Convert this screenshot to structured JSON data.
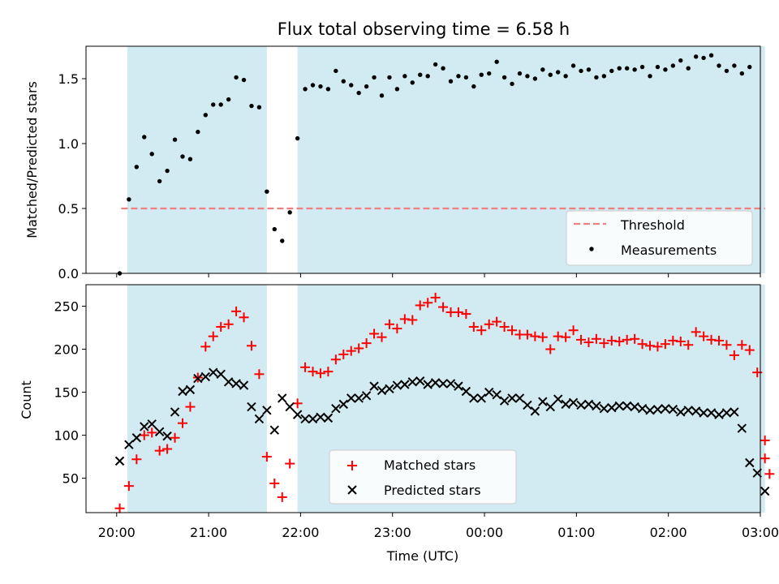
{
  "figure": {
    "title": "Flux total observing time = 6.58 h"
  },
  "colors": {
    "shade": "#add8e6",
    "threshold": "#f08080",
    "measurement": "#000000",
    "matched": "#ff0000",
    "predicted": "#000000"
  },
  "chart_data": [
    {
      "type": "scatter",
      "ylabel": "Matched/Predicted stars",
      "xlabel": "",
      "x_unit": "minutes from 20:00 UTC",
      "xlim": [
        -20,
        420
      ],
      "ylim": [
        0,
        1.75
      ],
      "yticks": [
        0.0,
        0.5,
        1.0,
        1.5
      ],
      "ytick_labels": [
        "0.0",
        "0.5",
        "1.0",
        "1.5"
      ],
      "shaded_spans": [
        [
          7,
          98
        ],
        [
          118,
          423
        ]
      ],
      "threshold": {
        "name": "Threshold",
        "y": 0.5,
        "x_range": [
          3,
          423
        ],
        "style": "dashed"
      },
      "series": [
        {
          "name": "Measurements",
          "marker": "dot",
          "x": [
            2,
            8,
            13,
            18,
            23,
            28,
            33,
            38,
            43,
            48,
            53,
            58,
            63,
            68,
            73,
            78,
            83,
            88,
            93,
            98,
            103,
            108,
            113,
            118,
            123,
            128,
            133,
            138,
            143,
            148,
            153,
            158,
            163,
            168,
            173,
            178,
            183,
            188,
            193,
            198,
            203,
            208,
            213,
            218,
            223,
            228,
            233,
            238,
            243,
            248,
            253,
            258,
            263,
            268,
            273,
            278,
            283,
            288,
            293,
            298,
            303,
            308,
            313,
            318,
            323,
            328,
            333,
            338,
            343,
            348,
            353,
            358,
            363,
            368,
            373,
            378,
            383,
            388,
            393,
            398,
            403,
            408,
            413
          ],
          "y": [
            0.0,
            0.57,
            0.82,
            1.05,
            0.92,
            0.71,
            0.79,
            1.03,
            0.9,
            0.88,
            1.09,
            1.22,
            1.3,
            1.3,
            1.34,
            1.51,
            1.49,
            1.29,
            1.28,
            0.63,
            0.34,
            0.25,
            0.47,
            1.04,
            1.42,
            1.45,
            1.44,
            1.42,
            1.56,
            1.48,
            1.45,
            1.39,
            1.44,
            1.51,
            1.37,
            1.51,
            1.42,
            1.52,
            1.47,
            1.53,
            1.52,
            1.61,
            1.58,
            1.48,
            1.52,
            1.51,
            1.44,
            1.53,
            1.54,
            1.63,
            1.51,
            1.46,
            1.54,
            1.52,
            1.5,
            1.57,
            1.53,
            1.55,
            1.52,
            1.6,
            1.56,
            1.57,
            1.51,
            1.52,
            1.56,
            1.58,
            1.58,
            1.57,
            1.59,
            1.52,
            1.59,
            1.57,
            1.6,
            1.64,
            1.58,
            1.67,
            1.66,
            1.68,
            1.6,
            1.56,
            1.6,
            1.54,
            1.59
          ]
        }
      ]
    },
    {
      "type": "scatter",
      "ylabel": "Count",
      "xlabel": "Time (UTC)",
      "x_unit": "minutes from 20:00 UTC",
      "xlim": [
        -20,
        420
      ],
      "ylim": [
        10,
        275
      ],
      "yticks": [
        50,
        100,
        150,
        200,
        250
      ],
      "ytick_labels": [
        "50",
        "100",
        "150",
        "200",
        "250"
      ],
      "xticks": [
        0,
        60,
        120,
        180,
        240,
        300,
        360,
        420
      ],
      "xtick_labels": [
        "20:00",
        "21:00",
        "22:00",
        "23:00",
        "00:00",
        "01:00",
        "02:00",
        "03:00"
      ],
      "shaded_spans": [
        [
          7,
          98
        ],
        [
          118,
          423
        ]
      ],
      "legend_position": "bottom-center",
      "series": [
        {
          "name": "Matched stars",
          "marker": "plus",
          "x": [
            2,
            8,
            13,
            18,
            23,
            28,
            33,
            38,
            43,
            48,
            53,
            58,
            63,
            68,
            73,
            78,
            83,
            88,
            93,
            98,
            103,
            108,
            113,
            118,
            123,
            128,
            133,
            138,
            143,
            148,
            153,
            158,
            163,
            168,
            173,
            178,
            183,
            188,
            193,
            198,
            203,
            208,
            213,
            218,
            223,
            228,
            233,
            238,
            243,
            248,
            253,
            258,
            263,
            268,
            273,
            278,
            283,
            288,
            293,
            298,
            303,
            308,
            313,
            318,
            323,
            328,
            333,
            338,
            343,
            348,
            353,
            358,
            363,
            368,
            373,
            378,
            383,
            388,
            393,
            398,
            403,
            408,
            413,
            418,
            423
          ],
          "y": [
            15,
            41,
            72,
            100,
            103,
            82,
            84,
            97,
            114,
            133,
            167,
            203,
            215,
            226,
            229,
            244,
            237,
            204,
            171,
            75,
            44,
            28,
            67,
            137,
            179,
            174,
            172,
            174,
            188,
            194,
            198,
            201,
            207,
            218,
            214,
            229,
            224,
            235,
            234,
            251,
            254,
            260,
            249,
            243,
            243,
            241,
            226,
            222,
            229,
            232,
            226,
            222,
            217,
            217,
            215,
            214,
            200,
            215,
            214,
            222,
            211,
            208,
            212,
            207,
            210,
            209,
            211,
            212,
            206,
            204,
            203,
            206,
            210,
            209,
            205,
            220,
            215,
            211,
            210,
            205,
            193,
            205,
            199,
            173,
            94
          ]
        },
        {
          "name": "Predicted stars",
          "marker": "x",
          "x": [
            2,
            8,
            13,
            18,
            23,
            28,
            33,
            38,
            43,
            48,
            53,
            58,
            63,
            68,
            73,
            78,
            83,
            88,
            93,
            98,
            103,
            108,
            113,
            118,
            123,
            128,
            133,
            138,
            143,
            148,
            153,
            158,
            163,
            168,
            173,
            178,
            183,
            188,
            193,
            198,
            203,
            208,
            213,
            218,
            223,
            228,
            233,
            238,
            243,
            248,
            253,
            258,
            263,
            268,
            273,
            278,
            283,
            288,
            293,
            298,
            303,
            308,
            313,
            318,
            323,
            328,
            333,
            338,
            343,
            348,
            353,
            358,
            363,
            368,
            373,
            378,
            383,
            388,
            393,
            398,
            403,
            408,
            413,
            418,
            423
          ],
          "y": [
            70,
            89,
            97,
            110,
            113,
            104,
            99,
            127,
            151,
            153,
            166,
            168,
            173,
            171,
            162,
            160,
            158,
            133,
            119,
            129,
            106,
            143,
            133,
            124,
            119,
            119,
            121,
            120,
            131,
            136,
            143,
            143,
            146,
            157,
            152,
            154,
            158,
            159,
            162,
            163,
            159,
            161,
            160,
            160,
            157,
            151,
            143,
            143,
            150,
            147,
            140,
            143,
            143,
            135,
            128,
            139,
            133,
            142,
            136,
            138,
            135,
            136,
            134,
            131,
            132,
            134,
            134,
            133,
            131,
            129,
            130,
            131,
            130,
            127,
            129,
            128,
            126,
            126,
            124,
            126,
            127,
            108,
            68,
            56,
            35
          ]
        },
        {
          "name": "",
          "marker": "plus",
          "x": [
            423
          ],
          "y": [
            73
          ]
        },
        {
          "name": "",
          "marker": "plus",
          "x": [
            426
          ],
          "y": [
            55
          ]
        }
      ]
    }
  ],
  "legends": {
    "top": [
      "Threshold",
      "Measurements"
    ],
    "bottom": [
      "Matched stars",
      "Predicted stars"
    ]
  }
}
